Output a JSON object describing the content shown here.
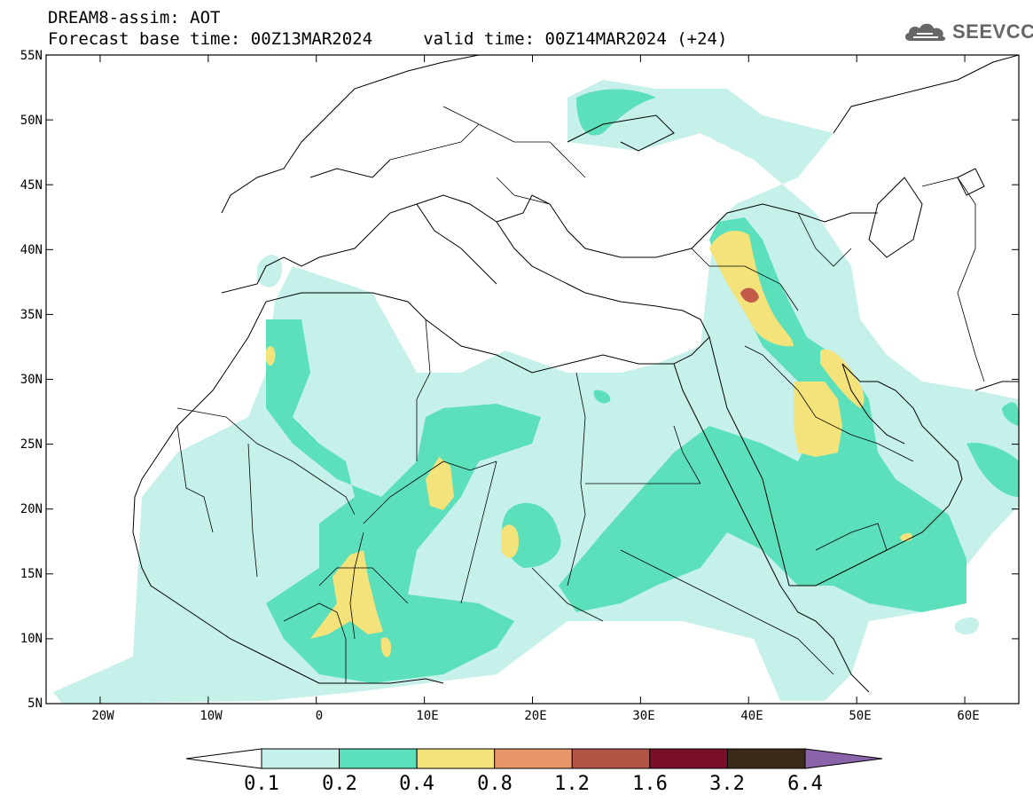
{
  "header": {
    "line1": "DREAM8-assim: AOT",
    "line2": "Forecast base time: 00Z13MAR2024     valid time: 00Z14MAR2024 (+24)"
  },
  "logo": {
    "text": "SEEVCCC",
    "icon": "cloud-logo-icon"
  },
  "map": {
    "lat_labels": [
      "55N",
      "50N",
      "45N",
      "40N",
      "35N",
      "30N",
      "25N",
      "20N",
      "15N",
      "10N",
      "5N"
    ],
    "lon_labels": [
      "20W",
      "10W",
      "0",
      "10E",
      "20E",
      "30E",
      "40E",
      "50E",
      "60E"
    ],
    "lat_range": [
      5,
      55
    ],
    "lon_range": [
      -25,
      65
    ]
  },
  "colorbar": {
    "labels": [
      "0.1",
      "0.2",
      "0.4",
      "0.8",
      "1.2",
      "1.6",
      "3.2",
      "6.4"
    ],
    "colors": [
      "#ffffff",
      "#c6f0ea",
      "#5ce0bc",
      "#f4e27a",
      "#e8956a",
      "#b35546",
      "#7a0f2c",
      "#3c2a18",
      "#8a63a8"
    ]
  }
}
